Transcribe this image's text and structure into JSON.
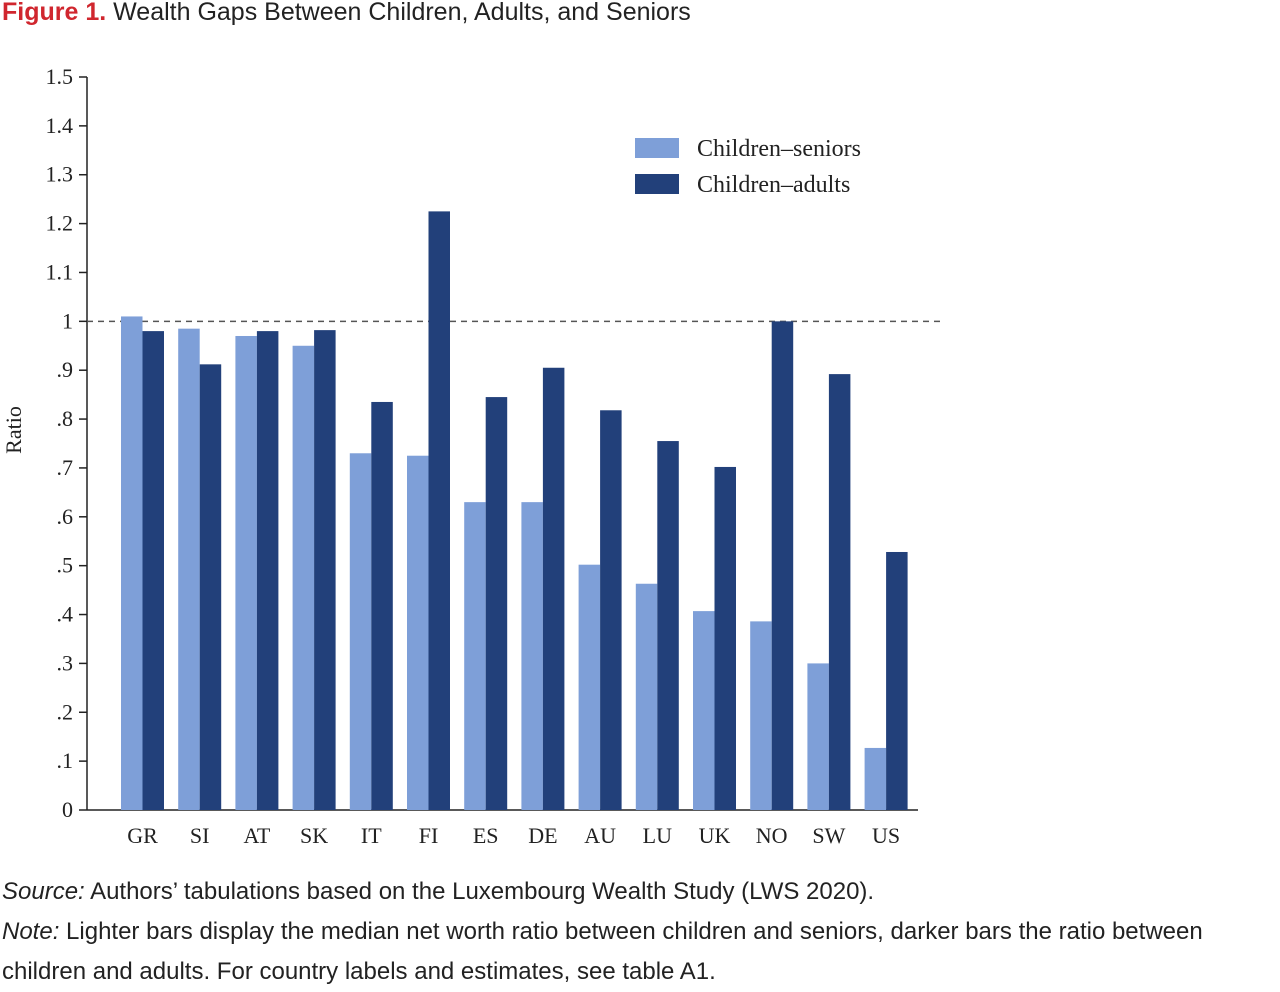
{
  "figure": {
    "label": "Figure 1.",
    "title": "Wealth Gaps Between Children, Adults, and Seniors"
  },
  "chart_data": {
    "type": "bar",
    "title": "Wealth Gaps Between Children, Adults, and Seniors",
    "xlabel": "",
    "ylabel": "Ratio",
    "ylim": [
      0,
      1.5
    ],
    "yticks": [
      0,
      0.1,
      0.2,
      0.3,
      0.4,
      0.5,
      0.6,
      0.7,
      0.8,
      0.9,
      1,
      1.1,
      1.2,
      1.3,
      1.4,
      1.5
    ],
    "ytick_labels": [
      "0",
      ".1",
      ".2",
      ".3",
      ".4",
      ".5",
      ".6",
      ".7",
      ".8",
      ".9",
      "1",
      "1.1",
      "1.2",
      "1.3",
      "1.4",
      "1.5"
    ],
    "reference_line": 1.0,
    "grid": false,
    "legend_position": "top-right",
    "categories": [
      "GR",
      "SI",
      "AT",
      "SK",
      "IT",
      "FI",
      "ES",
      "DE",
      "AU",
      "LU",
      "UK",
      "NO",
      "SW",
      "US"
    ],
    "series": [
      {
        "name": "Children–seniors",
        "color": "#7e9fd8",
        "values": [
          1.01,
          0.985,
          0.97,
          0.95,
          0.73,
          0.725,
          0.63,
          0.63,
          0.502,
          0.463,
          0.407,
          0.386,
          0.3,
          0.127
        ]
      },
      {
        "name": "Children–adults",
        "color": "#22407a",
        "values": [
          0.98,
          0.912,
          0.98,
          0.982,
          0.835,
          1.225,
          0.845,
          0.905,
          0.818,
          0.755,
          0.702,
          1.0,
          0.892,
          0.528
        ]
      }
    ]
  },
  "notes": {
    "source_label": "Source:",
    "source_text": " Authors’ tabulations based on the Luxembourg Wealth Study (LWS 2020).",
    "note_label": "Note:",
    "note_text": " Lighter bars display the median net worth ratio between children and seniors, darker bars the ratio between children and adults. For country labels and estimates, see table A1."
  }
}
